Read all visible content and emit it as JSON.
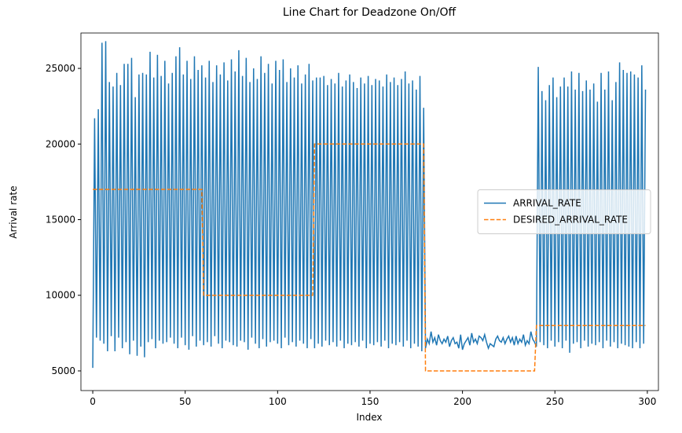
{
  "chart_data": {
    "type": "line",
    "title": "Line Chart for Deadzone On/Off",
    "xlabel": "Index",
    "ylabel": "Arrival rate",
    "x": [
      0,
      1,
      2,
      3,
      4,
      5,
      6,
      7,
      8,
      9,
      10,
      11,
      12,
      13,
      14,
      15,
      16,
      17,
      18,
      19,
      20,
      21,
      22,
      23,
      24,
      25,
      26,
      27,
      28,
      29,
      30,
      31,
      32,
      33,
      34,
      35,
      36,
      37,
      38,
      39,
      40,
      41,
      42,
      43,
      44,
      45,
      46,
      47,
      48,
      49,
      50,
      51,
      52,
      53,
      54,
      55,
      56,
      57,
      58,
      59,
      60,
      61,
      62,
      63,
      64,
      65,
      66,
      67,
      68,
      69,
      70,
      71,
      72,
      73,
      74,
      75,
      76,
      77,
      78,
      79,
      80,
      81,
      82,
      83,
      84,
      85,
      86,
      87,
      88,
      89,
      90,
      91,
      92,
      93,
      94,
      95,
      96,
      97,
      98,
      99,
      100,
      101,
      102,
      103,
      104,
      105,
      106,
      107,
      108,
      109,
      110,
      111,
      112,
      113,
      114,
      115,
      116,
      117,
      118,
      119,
      120,
      121,
      122,
      123,
      124,
      125,
      126,
      127,
      128,
      129,
      130,
      131,
      132,
      133,
      134,
      135,
      136,
      137,
      138,
      139,
      140,
      141,
      142,
      143,
      144,
      145,
      146,
      147,
      148,
      149,
      150,
      151,
      152,
      153,
      154,
      155,
      156,
      157,
      158,
      159,
      160,
      161,
      162,
      163,
      164,
      165,
      166,
      167,
      168,
      169,
      170,
      171,
      172,
      173,
      174,
      175,
      176,
      177,
      178,
      179,
      180,
      181,
      182,
      183,
      184,
      185,
      186,
      187,
      188,
      189,
      190,
      191,
      192,
      193,
      194,
      195,
      196,
      197,
      198,
      199,
      200,
      201,
      202,
      203,
      204,
      205,
      206,
      207,
      208,
      209,
      210,
      211,
      212,
      213,
      214,
      215,
      216,
      217,
      218,
      219,
      220,
      221,
      222,
      223,
      224,
      225,
      226,
      227,
      228,
      229,
      230,
      231,
      232,
      233,
      234,
      235,
      236,
      237,
      238,
      239,
      240,
      241,
      242,
      243,
      244,
      245,
      246,
      247,
      248,
      249,
      250,
      251,
      252,
      253,
      254,
      255,
      256,
      257,
      258,
      259,
      260,
      261,
      262,
      263,
      264,
      265,
      266,
      267,
      268,
      269,
      270,
      271,
      272,
      273,
      274,
      275,
      276,
      277,
      278,
      279,
      280,
      281,
      282,
      283,
      284,
      285,
      286,
      287,
      288,
      289,
      290,
      291,
      292,
      293,
      294,
      295,
      296,
      297,
      298,
      299
    ],
    "series": [
      {
        "name": "ARRIVAL_RATE",
        "color": "#1f77b4",
        "linestyle": "solid",
        "values": [
          5200,
          21700,
          7200,
          22300,
          7000,
          26700,
          6800,
          26800,
          6300,
          24100,
          7300,
          23800,
          6300,
          24700,
          7200,
          23900,
          6500,
          25300,
          6900,
          25300,
          6100,
          25700,
          7000,
          23100,
          6000,
          24600,
          6600,
          24700,
          5900,
          24600,
          6900,
          26100,
          7100,
          24400,
          6500,
          25900,
          7000,
          24500,
          6800,
          25500,
          6900,
          24000,
          7200,
          24700,
          6800,
          25800,
          6500,
          26400,
          7200,
          24600,
          6700,
          25500,
          6400,
          24300,
          7300,
          25800,
          6600,
          24900,
          7000,
          25200,
          6700,
          24400,
          6900,
          25500,
          6600,
          24100,
          7300,
          25200,
          6800,
          24600,
          6500,
          25400,
          7000,
          24200,
          6900,
          25600,
          6700,
          24800,
          6600,
          26200,
          7000,
          24500,
          6900,
          25700,
          6400,
          24100,
          7200,
          25000,
          6800,
          24300,
          6500,
          25800,
          7100,
          24700,
          6600,
          25300,
          6900,
          24000,
          7000,
          25500,
          6800,
          24900,
          6500,
          25600,
          7200,
          24100,
          6700,
          25000,
          6900,
          24400,
          6600,
          25200,
          7000,
          24000,
          6800,
          24600,
          6500,
          25300,
          7100,
          24200,
          6500,
          24400,
          6800,
          24400,
          6600,
          24500,
          7000,
          23900,
          6700,
          24300,
          6900,
          24000,
          6600,
          24700,
          7000,
          23800,
          6500,
          24200,
          6800,
          24600,
          6700,
          24100,
          6900,
          23700,
          6600,
          24400,
          7000,
          24000,
          6500,
          24500,
          6800,
          23900,
          6700,
          24300,
          6900,
          24200,
          6600,
          23800,
          7000,
          24600,
          6500,
          24100,
          6800,
          24400,
          6700,
          23900,
          6900,
          24300,
          6600,
          24800,
          7000,
          24000,
          6500,
          24200,
          6800,
          23600,
          6600,
          24500,
          6300,
          22400,
          6500,
          7100,
          6800,
          7600,
          6900,
          7200,
          6700,
          7400,
          7000,
          6800,
          7100,
          6900,
          7300,
          6600,
          7000,
          7200,
          6800,
          6900,
          6500,
          7400,
          6400,
          6800,
          7000,
          7200,
          6700,
          7500,
          6900,
          7100,
          6800,
          7300,
          7200,
          7000,
          7400,
          6900,
          6500,
          6800,
          6700,
          6600,
          7100,
          7300,
          7000,
          6900,
          7200,
          6800,
          7100,
          7300,
          6900,
          7200,
          6700,
          7300,
          6800,
          7100,
          6900,
          7400,
          6700,
          7000,
          6800,
          7600,
          7100,
          6900,
          6600,
          25100,
          6900,
          23500,
          6700,
          22900,
          6500,
          23900,
          7000,
          24400,
          6600,
          23100,
          6900,
          23800,
          6500,
          24400,
          7000,
          23800,
          6200,
          24800,
          6800,
          23600,
          6900,
          24700,
          6500,
          23500,
          7000,
          24200,
          6600,
          23600,
          6800,
          24000,
          6700,
          22800,
          6900,
          24700,
          6500,
          23600,
          7000,
          24800,
          6600,
          22900,
          6900,
          24100,
          6500,
          25400,
          6800,
          24900,
          6700,
          24700,
          6600,
          24800,
          6500,
          24600,
          6900,
          24400,
          6500,
          25200,
          6800,
          23600
        ]
      },
      {
        "name": "DESIRED_ARRIVAL_RATE",
        "color": "#ff7f0e",
        "linestyle": "dashed",
        "values": [
          17000,
          17000,
          17000,
          17000,
          17000,
          17000,
          17000,
          17000,
          17000,
          17000,
          17000,
          17000,
          17000,
          17000,
          17000,
          17000,
          17000,
          17000,
          17000,
          17000,
          17000,
          17000,
          17000,
          17000,
          17000,
          17000,
          17000,
          17000,
          17000,
          17000,
          17000,
          17000,
          17000,
          17000,
          17000,
          17000,
          17000,
          17000,
          17000,
          17000,
          17000,
          17000,
          17000,
          17000,
          17000,
          17000,
          17000,
          17000,
          17000,
          17000,
          17000,
          17000,
          17000,
          17000,
          17000,
          17000,
          17000,
          17000,
          17000,
          17000,
          10000,
          10000,
          10000,
          10000,
          10000,
          10000,
          10000,
          10000,
          10000,
          10000,
          10000,
          10000,
          10000,
          10000,
          10000,
          10000,
          10000,
          10000,
          10000,
          10000,
          10000,
          10000,
          10000,
          10000,
          10000,
          10000,
          10000,
          10000,
          10000,
          10000,
          10000,
          10000,
          10000,
          10000,
          10000,
          10000,
          10000,
          10000,
          10000,
          10000,
          10000,
          10000,
          10000,
          10000,
          10000,
          10000,
          10000,
          10000,
          10000,
          10000,
          10000,
          10000,
          10000,
          10000,
          10000,
          10000,
          10000,
          10000,
          10000,
          10000,
          20000,
          20000,
          20000,
          20000,
          20000,
          20000,
          20000,
          20000,
          20000,
          20000,
          20000,
          20000,
          20000,
          20000,
          20000,
          20000,
          20000,
          20000,
          20000,
          20000,
          20000,
          20000,
          20000,
          20000,
          20000,
          20000,
          20000,
          20000,
          20000,
          20000,
          20000,
          20000,
          20000,
          20000,
          20000,
          20000,
          20000,
          20000,
          20000,
          20000,
          20000,
          20000,
          20000,
          20000,
          20000,
          20000,
          20000,
          20000,
          20000,
          20000,
          20000,
          20000,
          20000,
          20000,
          20000,
          20000,
          20000,
          20000,
          20000,
          20000,
          5000,
          5000,
          5000,
          5000,
          5000,
          5000,
          5000,
          5000,
          5000,
          5000,
          5000,
          5000,
          5000,
          5000,
          5000,
          5000,
          5000,
          5000,
          5000,
          5000,
          5000,
          5000,
          5000,
          5000,
          5000,
          5000,
          5000,
          5000,
          5000,
          5000,
          5000,
          5000,
          5000,
          5000,
          5000,
          5000,
          5000,
          5000,
          5000,
          5000,
          5000,
          5000,
          5000,
          5000,
          5000,
          5000,
          5000,
          5000,
          5000,
          5000,
          5000,
          5000,
          5000,
          5000,
          5000,
          5000,
          5000,
          5000,
          5000,
          5000,
          8000,
          8000,
          8000,
          8000,
          8000,
          8000,
          8000,
          8000,
          8000,
          8000,
          8000,
          8000,
          8000,
          8000,
          8000,
          8000,
          8000,
          8000,
          8000,
          8000,
          8000,
          8000,
          8000,
          8000,
          8000,
          8000,
          8000,
          8000,
          8000,
          8000,
          8000,
          8000,
          8000,
          8000,
          8000,
          8000,
          8000,
          8000,
          8000,
          8000,
          8000,
          8000,
          8000,
          8000,
          8000,
          8000,
          8000,
          8000,
          8000,
          8000,
          8000,
          8000,
          8000,
          8000,
          8000,
          8000,
          8000,
          8000,
          8000,
          8000
        ]
      }
    ],
    "xlim": [
      -6.4,
      306
    ],
    "xticks": [
      0,
      50,
      100,
      150,
      200,
      250,
      300
    ],
    "ylim": [
      3700,
      27340
    ],
    "yticks": [
      5000,
      10000,
      15000,
      20000,
      25000
    ],
    "legend": "center right",
    "grid": false
  }
}
